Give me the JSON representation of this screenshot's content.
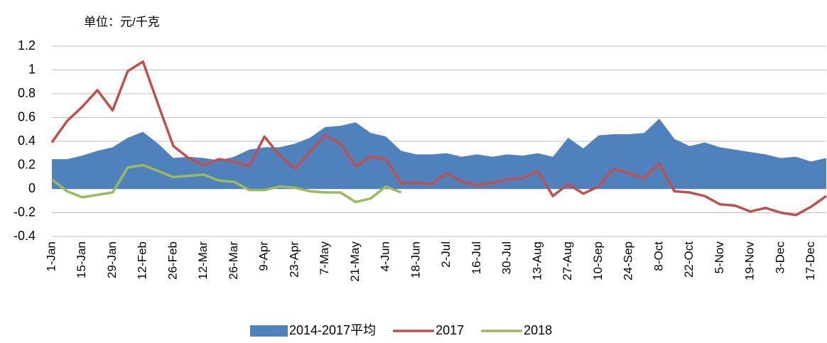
{
  "chart_data": {
    "type": "line",
    "unit_note": "单位：元/千克",
    "categories": [
      "1-Jan",
      null,
      "15-Jan",
      null,
      "29-Jan",
      null,
      "12-Feb",
      null,
      "26-Feb",
      null,
      "12-Mar",
      null,
      "26-Mar",
      null,
      "9-Apr",
      null,
      "23-Apr",
      null,
      "7-May",
      null,
      "21-May",
      null,
      "4-Jun",
      null,
      "18-Jun",
      null,
      "2-Jul",
      null,
      "16-Jul",
      null,
      "30-Jul",
      null,
      "13-Aug",
      null,
      "27-Aug",
      null,
      "10-Sep",
      null,
      "24-Sep",
      null,
      "8-Oct",
      null,
      "22-Oct",
      null,
      "5-Nov",
      null,
      "19-Nov",
      null,
      "3-Dec",
      null,
      "17-Dec",
      null
    ],
    "series": [
      {
        "name": "2014-2017平均",
        "color": "#4f81bd",
        "style": "area",
        "values": [
          0.25,
          0.25,
          0.28,
          0.32,
          0.35,
          0.43,
          0.48,
          0.38,
          0.26,
          0.27,
          0.26,
          0.24,
          0.27,
          0.33,
          0.35,
          0.35,
          0.38,
          0.43,
          0.52,
          0.53,
          0.56,
          0.47,
          0.44,
          0.32,
          0.29,
          0.29,
          0.3,
          0.27,
          0.29,
          0.27,
          0.29,
          0.28,
          0.3,
          0.27,
          0.43,
          0.34,
          0.45,
          0.46,
          0.46,
          0.47,
          0.59,
          0.42,
          0.36,
          0.39,
          0.35,
          0.33,
          0.31,
          0.29,
          0.26,
          0.27,
          0.23,
          0.26
        ]
      },
      {
        "name": "2017",
        "color": "#c0504d",
        "style": "line",
        "values": [
          0.39,
          0.57,
          0.69,
          0.83,
          0.66,
          0.99,
          1.07,
          0.71,
          0.36,
          0.26,
          0.2,
          0.25,
          0.23,
          0.19,
          0.44,
          0.28,
          0.17,
          0.31,
          0.45,
          0.38,
          0.19,
          0.27,
          0.25,
          0.05,
          0.05,
          0.04,
          0.13,
          0.06,
          0.03,
          0.05,
          0.08,
          0.09,
          0.15,
          -0.06,
          0.04,
          -0.04,
          0.02,
          0.17,
          0.13,
          0.09,
          0.21,
          -0.02,
          -0.03,
          -0.06,
          -0.13,
          -0.14,
          -0.19,
          -0.16,
          -0.2,
          -0.22,
          -0.15,
          -0.06
        ]
      },
      {
        "name": "2018",
        "color": "#9bbb59",
        "style": "line",
        "values": [
          0.08,
          -0.02,
          -0.07,
          -0.05,
          -0.03,
          0.18,
          0.2,
          0.15,
          0.1,
          0.11,
          0.12,
          0.07,
          0.06,
          -0.01,
          -0.01,
          0.02,
          0.01,
          -0.02,
          -0.03,
          -0.03,
          -0.11,
          -0.08,
          0.02,
          -0.03,
          null,
          null,
          null,
          null,
          null,
          null,
          null,
          null,
          null,
          null,
          null,
          null,
          null,
          null,
          null,
          null,
          null,
          null,
          null,
          null,
          null,
          null,
          null,
          null,
          null,
          null,
          null,
          null
        ]
      }
    ],
    "ylim": [
      -0.4,
      1.2
    ],
    "yticks": [
      -0.4,
      -0.2,
      0,
      0.2,
      0.4,
      0.6,
      0.8,
      1,
      1.2
    ],
    "grid": true,
    "legend": "bottom"
  }
}
